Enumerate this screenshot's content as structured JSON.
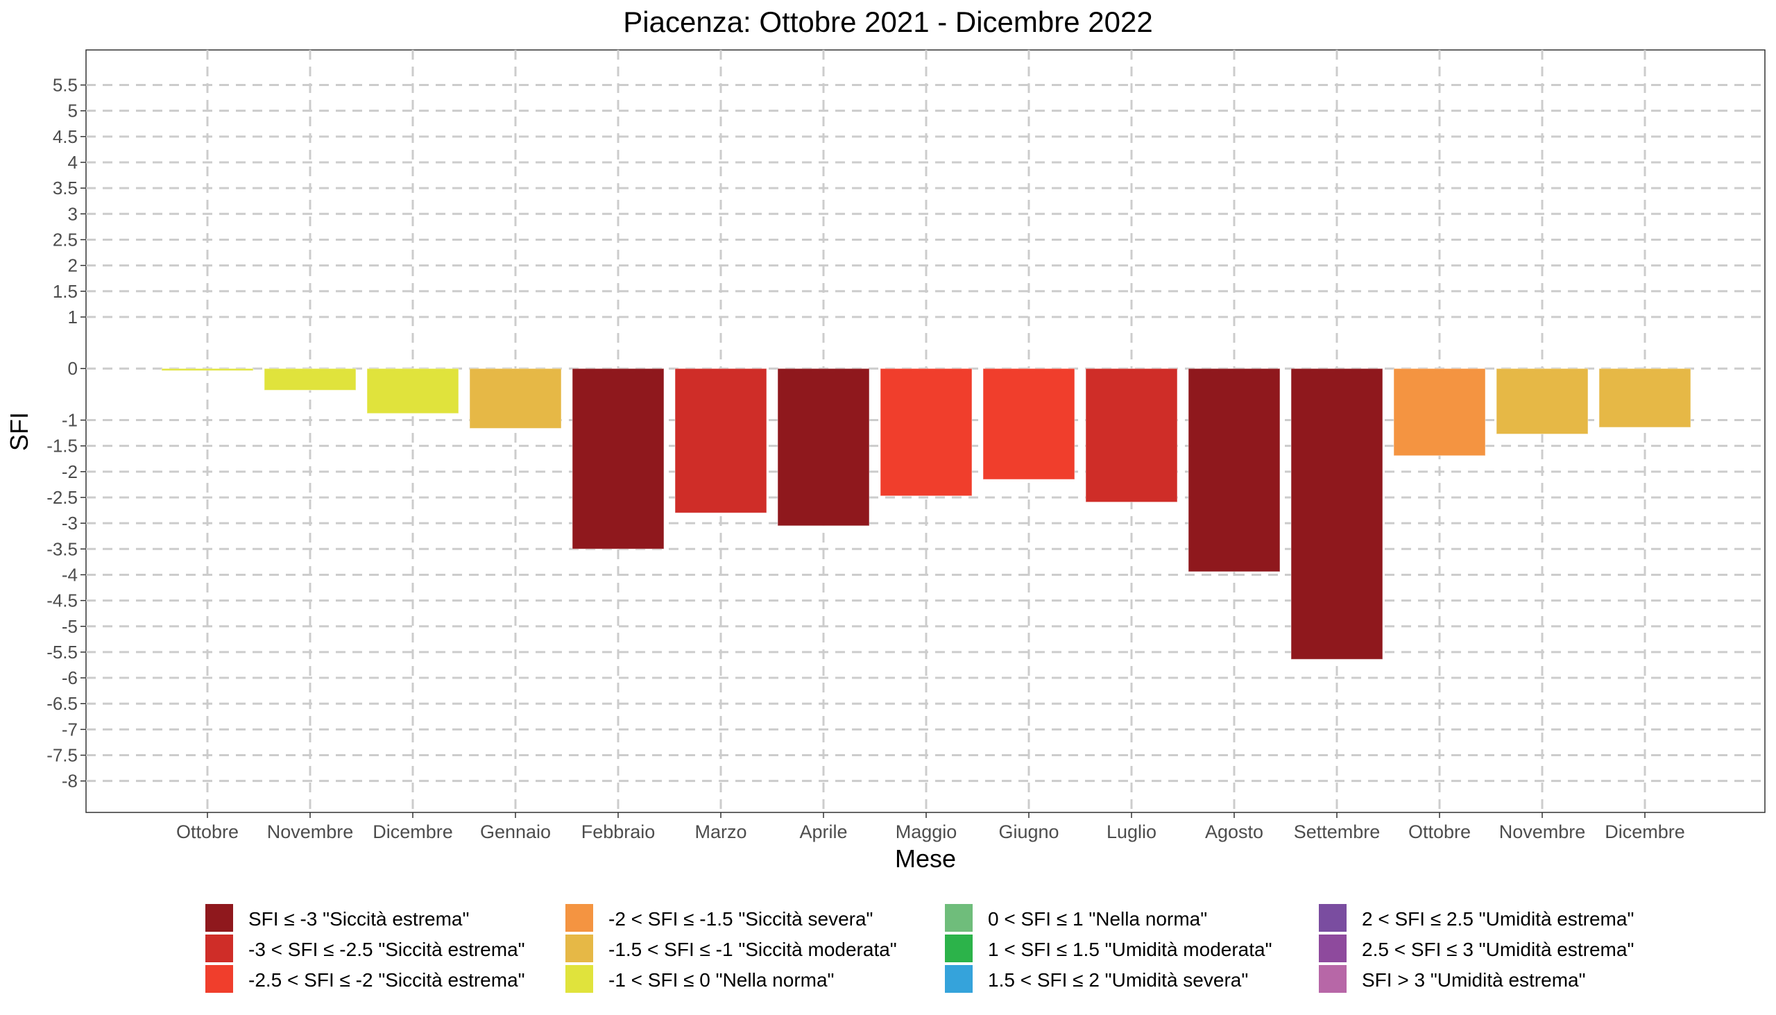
{
  "chart_data": {
    "type": "bar",
    "title": "Piacenza: Ottobre 2021 - Dicembre 2022",
    "xlabel": "Mese",
    "ylabel": "SFI",
    "categories": [
      "Ottobre",
      "Novembre",
      "Dicembre",
      "Gennaio",
      "Febbraio",
      "Marzo",
      "Aprile",
      "Maggio",
      "Giugno",
      "Luglio",
      "Agosto",
      "Settembre",
      "Ottobre",
      "Novembre",
      "Dicembre"
    ],
    "values": [
      -0.04,
      -0.42,
      -0.87,
      -1.16,
      -3.5,
      -2.8,
      -3.05,
      -2.47,
      -2.15,
      -2.59,
      -3.94,
      -5.64,
      -1.69,
      -1.27,
      -1.14
    ],
    "class_index": [
      5,
      5,
      5,
      4,
      0,
      1,
      0,
      2,
      2,
      1,
      0,
      0,
      3,
      4,
      4
    ],
    "ylim": [
      -8.61,
      6.18
    ],
    "yticks": [
      5.5,
      5,
      4.5,
      4,
      3.5,
      3,
      2.5,
      2,
      1.5,
      1,
      0,
      -1,
      -1.5,
      -2,
      -2.5,
      -3,
      -3.5,
      -4,
      -4.5,
      -5,
      -5.5,
      -6,
      -6.5,
      -7,
      -7.5,
      -8
    ],
    "grid": true,
    "legend_position": "bottom",
    "legend": [
      {
        "label": "SFI ≤ -3 \"Siccità estrema\"",
        "color": "#8f181d"
      },
      {
        "label": "-3 < SFI ≤ -2.5 \"Siccità estrema\"",
        "color": "#cf2d28"
      },
      {
        "label": "-2.5 < SFI ≤ -2 \"Siccità estrema\"",
        "color": "#f03e2c"
      },
      {
        "label": "-2 < SFI ≤ -1.5 \"Siccità severa\"",
        "color": "#f49441"
      },
      {
        "label": "-1.5 < SFI ≤ -1 \"Siccità moderata\"",
        "color": "#e6b846"
      },
      {
        "label": "-1 < SFI ≤ 0 \"Nella norma\"",
        "color": "#e0e33c"
      },
      {
        "label": "0 < SFI ≤ 1 \"Nella norma\"",
        "color": "#6fbd7b"
      },
      {
        "label": "1 < SFI ≤ 1.5 \"Umidità moderata\"",
        "color": "#2cb34a"
      },
      {
        "label": "1.5 < SFI ≤ 2 \"Umidità severa\"",
        "color": "#35a3db"
      },
      {
        "label": "2 < SFI ≤ 2.5 \"Umidità estrema\"",
        "color": "#7a4da0"
      },
      {
        "label": "2.5 < SFI ≤ 3 \"Umidità estrema\"",
        "color": "#8e4a9d"
      },
      {
        "label": "SFI > 3 \"Umidità estrema\"",
        "color": "#b767a7"
      }
    ]
  }
}
